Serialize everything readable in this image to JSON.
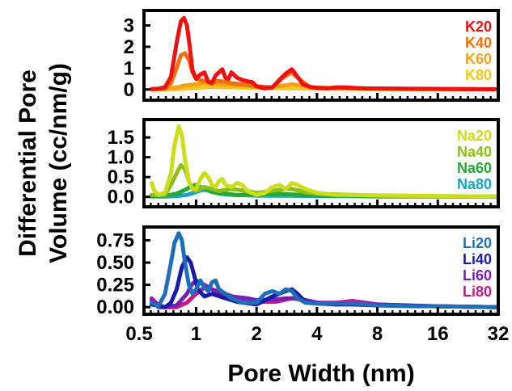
{
  "chart_data": {
    "type": "line",
    "shared_x": {
      "label": "Pore Width (nm)",
      "scale": "log2",
      "lim": [
        0.55,
        32
      ],
      "ticks": [
        0.5,
        1,
        2,
        4,
        8,
        16,
        32
      ],
      "tick_labels": [
        "0.5",
        "1",
        "2",
        "4",
        "8",
        "16",
        "32"
      ]
    },
    "shared_y_label": "Differential Pore Volume (cc/nm/g)",
    "panels": [
      {
        "ylim": [
          -0.5,
          3.7
        ],
        "yticks": [
          0,
          1,
          2,
          3
        ],
        "ytick_labels": [
          "0",
          "1",
          "2",
          "3"
        ],
        "legend_position": "top-right",
        "series": [
          {
            "name": "K20",
            "color": "#ee1111",
            "x": [
              0.6,
              0.65,
              0.7,
              0.75,
              0.8,
              0.84,
              0.87,
              0.9,
              0.93,
              0.96,
              1.0,
              1.05,
              1.1,
              1.15,
              1.2,
              1.25,
              1.3,
              1.35,
              1.4,
              1.45,
              1.5,
              1.6,
              1.7,
              1.8,
              1.9,
              2.0,
              2.2,
              2.4,
              2.6,
              2.8,
              3.0,
              3.2,
              3.4,
              3.7,
              4.0,
              4.5,
              5.0,
              5.5,
              6.0,
              7.0,
              8.0,
              10.0,
              12.0,
              16.0,
              20.0,
              32.0
            ],
            "y": [
              0.02,
              0.04,
              0.1,
              0.6,
              2.2,
              3.2,
              3.35,
              3.0,
              2.0,
              0.9,
              0.5,
              0.7,
              0.8,
              0.35,
              0.3,
              0.65,
              0.8,
              0.95,
              0.55,
              0.5,
              0.8,
              0.55,
              0.45,
              0.38,
              0.35,
              0.15,
              0.05,
              0.1,
              0.45,
              0.75,
              0.95,
              0.6,
              0.25,
              0.12,
              0.08,
              0.05,
              0.1,
              0.1,
              0.08,
              0.05,
              0.05,
              0.04,
              0.03,
              0.03,
              0.02,
              0.01
            ]
          },
          {
            "name": "K40",
            "color": "#f2700d",
            "x": [
              0.6,
              0.7,
              0.75,
              0.8,
              0.84,
              0.88,
              0.92,
              0.96,
              1.0,
              1.05,
              1.1,
              1.2,
              1.3,
              1.4,
              1.5,
              1.7,
              2.0,
              2.4,
              2.7,
              3.0,
              3.3,
              3.7,
              4.5,
              6.0,
              8.0,
              12.0,
              16.0,
              20.0,
              32.0
            ],
            "y": [
              0.02,
              0.04,
              0.3,
              1.0,
              1.6,
              1.7,
              1.4,
              0.8,
              0.5,
              0.45,
              0.4,
              0.35,
              0.4,
              0.35,
              0.3,
              0.25,
              0.15,
              0.1,
              0.55,
              0.8,
              0.45,
              0.1,
              0.08,
              0.06,
              0.05,
              0.04,
              0.03,
              0.02,
              0.01
            ]
          },
          {
            "name": "K60",
            "color": "#f5a21b",
            "x": [
              0.6,
              0.7,
              0.8,
              0.9,
              1.0,
              1.1,
              1.2,
              1.3,
              1.5,
              1.8,
              2.0,
              2.4,
              2.8,
              3.0,
              3.5,
              4.0,
              6.0,
              8.0,
              16.0,
              32.0
            ],
            "y": [
              0.01,
              0.03,
              0.1,
              0.2,
              0.25,
              0.3,
              0.28,
              0.25,
              0.22,
              0.18,
              0.12,
              0.1,
              0.2,
              0.25,
              0.15,
              0.08,
              0.05,
              0.04,
              0.02,
              0.01
            ]
          },
          {
            "name": "K80",
            "color": "#f5c518",
            "x": [
              0.6,
              0.8,
              1.0,
              1.2,
              1.5,
              2.0,
              3.0,
              4.0,
              6.0,
              8.0,
              16.0,
              32.0
            ],
            "y": [
              0.01,
              0.02,
              0.08,
              0.12,
              0.1,
              0.08,
              0.06,
              0.04,
              0.03,
              0.02,
              0.01,
              0.01
            ]
          }
        ]
      },
      {
        "ylim": [
          -0.25,
          1.95
        ],
        "yticks": [
          0,
          0.5,
          1.0,
          1.5
        ],
        "ytick_labels": [
          "0.0",
          "0.5",
          "1.0",
          "1.5"
        ],
        "legend_position": "top-right",
        "series": [
          {
            "name": "Na20",
            "color": "#ccdd1a",
            "x": [
              0.6,
              0.62,
              0.65,
              0.7,
              0.75,
              0.78,
              0.82,
              0.85,
              0.88,
              0.92,
              0.96,
              1.0,
              1.05,
              1.1,
              1.15,
              1.2,
              1.25,
              1.3,
              1.35,
              1.4,
              1.5,
              1.6,
              1.7,
              1.8,
              2.0,
              2.2,
              2.4,
              2.6,
              2.8,
              3.0,
              3.2,
              3.5,
              4.0,
              5.0,
              6.0,
              8.0,
              12.0,
              16.0,
              32.0
            ],
            "y": [
              0.35,
              0.15,
              0.05,
              0.1,
              0.6,
              1.3,
              1.78,
              1.55,
              0.95,
              0.4,
              0.2,
              0.2,
              0.45,
              0.6,
              0.5,
              0.3,
              0.25,
              0.4,
              0.45,
              0.3,
              0.25,
              0.35,
              0.3,
              0.15,
              0.05,
              0.1,
              0.25,
              0.3,
              0.2,
              0.35,
              0.3,
              0.2,
              0.1,
              0.05,
              0.05,
              0.04,
              0.03,
              0.02,
              0.01
            ]
          },
          {
            "name": "Na40",
            "color": "#8cbf1a",
            "x": [
              0.6,
              0.7,
              0.75,
              0.8,
              0.84,
              0.88,
              0.92,
              0.96,
              1.0,
              1.1,
              1.2,
              1.3,
              1.5,
              1.8,
              2.0,
              2.4,
              2.8,
              3.0,
              3.5,
              4.0,
              6.0,
              8.0,
              16.0,
              32.0
            ],
            "y": [
              0.05,
              0.05,
              0.3,
              0.6,
              0.8,
              0.7,
              0.4,
              0.2,
              0.15,
              0.25,
              0.2,
              0.15,
              0.2,
              0.15,
              0.1,
              0.15,
              0.2,
              0.2,
              0.12,
              0.08,
              0.05,
              0.03,
              0.02,
              0.01
            ]
          },
          {
            "name": "Na60",
            "color": "#22aa33",
            "x": [
              0.6,
              0.7,
              0.8,
              0.9,
              0.95,
              1.0,
              1.05,
              1.1,
              1.2,
              1.4,
              1.6,
              2.0,
              2.5,
              3.0,
              4.0,
              6.0,
              8.0,
              16.0,
              32.0
            ],
            "y": [
              0.02,
              0.03,
              0.08,
              0.2,
              0.28,
              0.3,
              0.25,
              0.22,
              0.12,
              0.08,
              0.05,
              0.06,
              0.08,
              0.06,
              0.04,
              0.03,
              0.02,
              0.01,
              0.01
            ]
          },
          {
            "name": "Na80",
            "color": "#19a6c8",
            "x": [
              0.6,
              0.7,
              0.8,
              0.9,
              1.0,
              1.05,
              1.1,
              1.2,
              1.3,
              1.5,
              1.8,
              2.0,
              3.0,
              4.0,
              6.0,
              8.0,
              16.0,
              32.0
            ],
            "y": [
              0.01,
              0.01,
              0.02,
              0.05,
              0.12,
              0.16,
              0.18,
              0.14,
              0.08,
              0.05,
              0.04,
              0.03,
              0.03,
              0.02,
              0.02,
              0.01,
              0.01,
              0.0
            ]
          }
        ]
      },
      {
        "ylim": [
          -0.08,
          0.9
        ],
        "yticks": [
          0,
          0.25,
          0.5,
          0.75
        ],
        "ytick_labels": [
          "0.00",
          "0.25",
          "0.50",
          "0.75"
        ],
        "legend_position": "top-right",
        "series": [
          {
            "name": "Li20",
            "color": "#1f6fb8",
            "x": [
              0.6,
              0.65,
              0.7,
              0.75,
              0.78,
              0.82,
              0.85,
              0.88,
              0.92,
              0.96,
              1.0,
              1.05,
              1.1,
              1.15,
              1.2,
              1.25,
              1.3,
              1.4,
              1.5,
              1.7,
              2.0,
              2.2,
              2.4,
              2.6,
              2.8,
              3.0,
              3.2,
              3.5,
              4.0,
              5.0,
              6.0,
              8.0,
              12.0,
              16.0,
              32.0
            ],
            "y": [
              0.05,
              0.01,
              0.15,
              0.5,
              0.72,
              0.83,
              0.75,
              0.5,
              0.25,
              0.15,
              0.2,
              0.3,
              0.22,
              0.18,
              0.28,
              0.3,
              0.2,
              0.15,
              0.1,
              0.05,
              0.05,
              0.15,
              0.18,
              0.15,
              0.2,
              0.18,
              0.1,
              0.05,
              0.04,
              0.04,
              0.04,
              0.02,
              0.01,
              0.01,
              0.0
            ]
          },
          {
            "name": "Li40",
            "color": "#1a1aaa",
            "x": [
              0.6,
              0.7,
              0.75,
              0.8,
              0.85,
              0.9,
              0.94,
              0.98,
              1.02,
              1.1,
              1.2,
              1.4,
              1.6,
              2.0,
              2.4,
              2.8,
              3.0,
              3.2,
              3.5,
              4.0,
              5.0,
              6.0,
              8.0,
              16.0,
              32.0
            ],
            "y": [
              0.03,
              0.0,
              0.05,
              0.2,
              0.45,
              0.56,
              0.5,
              0.35,
              0.2,
              0.12,
              0.15,
              0.1,
              0.06,
              0.03,
              0.12,
              0.18,
              0.2,
              0.15,
              0.06,
              0.04,
              0.03,
              0.03,
              0.02,
              0.01,
              0.0
            ]
          },
          {
            "name": "Li60",
            "color": "#7a1fb5",
            "x": [
              0.6,
              0.65,
              0.7,
              0.8,
              0.9,
              0.95,
              1.0,
              1.1,
              1.2,
              1.3,
              1.5,
              1.8,
              2.0,
              2.4,
              2.8,
              3.0,
              3.5,
              4.0,
              5.0,
              6.0,
              8.0,
              16.0,
              32.0
            ],
            "y": [
              0.08,
              0.0,
              0.0,
              0.02,
              0.15,
              0.25,
              0.3,
              0.25,
              0.2,
              0.15,
              0.12,
              0.1,
              0.08,
              0.08,
              0.1,
              0.1,
              0.08,
              0.05,
              0.04,
              0.04,
              0.03,
              0.01,
              0.0
            ]
          },
          {
            "name": "Li80",
            "color": "#c8188a",
            "x": [
              0.6,
              0.65,
              0.7,
              0.8,
              0.9,
              1.0,
              1.1,
              1.2,
              1.4,
              1.6,
              2.0,
              2.5,
              3.0,
              3.5,
              4.0,
              5.0,
              6.0,
              7.0,
              8.0,
              10.0,
              16.0,
              32.0
            ],
            "y": [
              0.1,
              0.02,
              0.0,
              0.0,
              0.05,
              0.15,
              0.22,
              0.2,
              0.15,
              0.1,
              0.06,
              0.06,
              0.1,
              0.08,
              0.05,
              0.05,
              0.07,
              0.05,
              0.03,
              0.02,
              0.01,
              0.0
            ]
          }
        ]
      }
    ]
  }
}
